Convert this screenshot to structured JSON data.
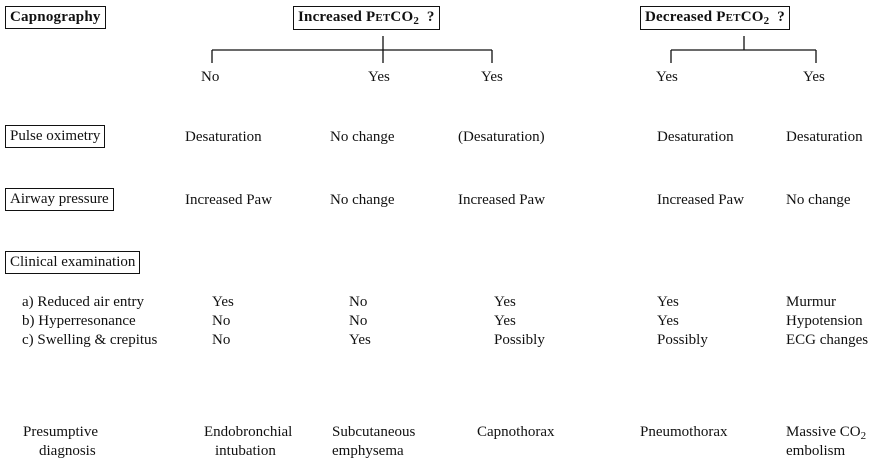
{
  "headers": {
    "capnography": "Capnography",
    "increased": {
      "pre": "Increased ",
      "sc": "Pet",
      "co": "CO",
      "sub": "2",
      "q": "  ?"
    },
    "decreased": {
      "pre": "Decreased ",
      "sc": "Pet",
      "co": "CO",
      "sub": "2",
      "q": "  ?"
    }
  },
  "answers": [
    "No",
    "Yes",
    "Yes",
    "Yes",
    "Yes"
  ],
  "rows": {
    "pulse_oximetry": {
      "label": "Pulse oximetry",
      "values": [
        "Desaturation",
        "No change",
        "(Desaturation)",
        "Desaturation",
        "Desaturation"
      ]
    },
    "airway_pressure": {
      "label": "Airway pressure",
      "values": [
        "Increased Paw",
        "No change",
        "Increased Paw",
        "Increased Paw",
        "No change"
      ]
    },
    "clinical_examination": {
      "label": "Clinical examination"
    }
  },
  "clinical_items": [
    {
      "label": "a) Reduced air entry",
      "values": [
        "Yes",
        "No",
        "Yes",
        "Yes",
        "Murmur"
      ]
    },
    {
      "label": "b) Hyperresonance",
      "values": [
        "No",
        "No",
        "Yes",
        "Yes",
        "Hypotension"
      ]
    },
    {
      "label": "c) Swelling & crepitus",
      "values": [
        "No",
        "Yes",
        "Possibly",
        "Possibly",
        "ECG changes"
      ]
    }
  ],
  "diagnosis": {
    "label_line1": "Presumptive",
    "label_line2": "diagnosis",
    "items": [
      {
        "line1": "Endobronchial",
        "line2": "intubation"
      },
      {
        "line1": "Subcutaneous",
        "line2": "emphysema"
      },
      {
        "line1": "Capnothorax",
        "line2": ""
      },
      {
        "line1": "Pneumothorax",
        "line2": ""
      },
      {
        "line1": "Massive CO",
        "sub": "2",
        "line2": "embolism"
      }
    ]
  }
}
